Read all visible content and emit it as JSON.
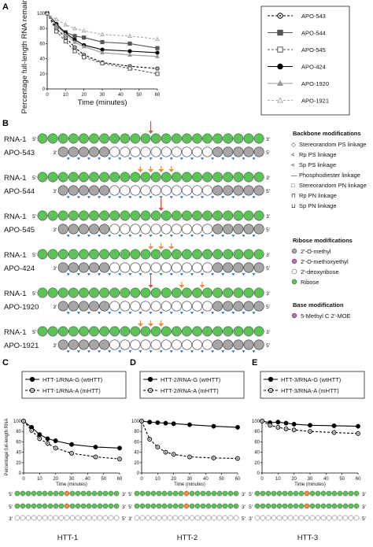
{
  "panels": {
    "A": "A",
    "B": "B",
    "C": "C",
    "D": "D",
    "E": "E"
  },
  "colors": {
    "green": "#5ec15a",
    "gray": "#a6a6a6",
    "white": "#ffffff",
    "red": "#e5483a",
    "blue": "#2f6bb0",
    "magenta": "#b96ab7",
    "orange": "#f08a3c"
  },
  "chart_data": [
    {
      "type": "line",
      "ylabel": "Percentage full-length RNA remaining",
      "xlabel": "Time (minutes)",
      "xlim": [
        0,
        60
      ],
      "ylim": [
        0,
        100
      ],
      "xticks": [
        0,
        10,
        20,
        30,
        40,
        50,
        60
      ],
      "yticks": [
        0,
        20,
        40,
        60,
        80,
        100
      ],
      "series": [
        {
          "name": "APO-543",
          "marker": "open-circle",
          "dash": "dash",
          "color": "#000000",
          "x": [
            0,
            5,
            10,
            15,
            20,
            30,
            45,
            60
          ],
          "y": [
            100,
            80,
            68,
            55,
            45,
            35,
            30,
            27
          ]
        },
        {
          "name": "APO-544",
          "marker": "filled-square",
          "dash": "solid",
          "color": "#555555",
          "x": [
            0,
            5,
            10,
            15,
            20,
            30,
            45,
            60
          ],
          "y": [
            100,
            84,
            75,
            70,
            68,
            62,
            60,
            54
          ]
        },
        {
          "name": "APO-545",
          "marker": "open-square",
          "dash": "dash",
          "color": "#555555",
          "x": [
            0,
            5,
            10,
            15,
            20,
            30,
            45,
            60
          ],
          "y": [
            100,
            76,
            63,
            50,
            42,
            34,
            27,
            20
          ]
        },
        {
          "name": "APO-424",
          "marker": "filled-circle",
          "dash": "solid",
          "color": "#000000",
          "x": [
            0,
            5,
            10,
            15,
            20,
            30,
            45,
            60
          ],
          "y": [
            100,
            86,
            74,
            65,
            58,
            52,
            50,
            48
          ]
        },
        {
          "name": "APO-1920",
          "marker": "filled-triangle",
          "dash": "solid",
          "color": "#999999",
          "x": [
            0,
            5,
            10,
            15,
            20,
            30,
            45,
            60
          ],
          "y": [
            100,
            84,
            72,
            62,
            56,
            48,
            45,
            43
          ]
        },
        {
          "name": "APO-1921",
          "marker": "open-triangle",
          "dash": "dash",
          "color": "#aaaaaa",
          "x": [
            0,
            5,
            10,
            15,
            20,
            30,
            45,
            60
          ],
          "y": [
            100,
            92,
            85,
            80,
            77,
            72,
            70,
            66
          ]
        }
      ]
    },
    {
      "type": "line",
      "title": "HTT-1",
      "ylabel": "Percentage full-length RNA",
      "xlabel": "Time (minutes)",
      "xlim": [
        0,
        60
      ],
      "ylim": [
        0,
        100
      ],
      "xticks": [
        0,
        10,
        20,
        30,
        40,
        50,
        60
      ],
      "yticks": [
        0,
        20,
        40,
        60,
        80,
        100
      ],
      "series": [
        {
          "name": "HTT-1/RNA-G (wtHTT)",
          "marker": "filled-circle",
          "dash": "solid",
          "x": [
            0,
            5,
            10,
            15,
            20,
            30,
            45,
            60
          ],
          "y": [
            100,
            88,
            74,
            66,
            62,
            55,
            50,
            48
          ]
        },
        {
          "name": "HTT-1/RNA-A (mHTT)",
          "marker": "open-circle",
          "dash": "dash",
          "x": [
            0,
            5,
            10,
            15,
            20,
            30,
            45,
            60
          ],
          "y": [
            100,
            82,
            66,
            57,
            48,
            38,
            31,
            27
          ]
        }
      ]
    },
    {
      "type": "line",
      "title": "HTT-2",
      "xlabel": "Time (minutes)",
      "xlim": [
        0,
        60
      ],
      "ylim": [
        0,
        100
      ],
      "xticks": [
        0,
        10,
        20,
        30,
        40,
        50,
        60
      ],
      "yticks": [
        0,
        20,
        40,
        60,
        80,
        100
      ],
      "series": [
        {
          "name": "HTT-2/RNA-G (wtHTT)",
          "marker": "filled-circle",
          "dash": "solid",
          "x": [
            0,
            5,
            10,
            15,
            20,
            30,
            45,
            60
          ],
          "y": [
            100,
            98,
            97,
            96,
            95,
            93,
            90,
            88
          ]
        },
        {
          "name": "HTT-2/RNA-A (mHTT)",
          "marker": "open-circle",
          "dash": "dash",
          "x": [
            0,
            5,
            10,
            15,
            20,
            30,
            45,
            60
          ],
          "y": [
            100,
            65,
            50,
            40,
            36,
            31,
            29,
            28
          ]
        }
      ]
    },
    {
      "type": "line",
      "title": "HTT-3",
      "xlabel": "Time (minutes)",
      "xlim": [
        0,
        60
      ],
      "ylim": [
        0,
        100
      ],
      "xticks": [
        0,
        10,
        20,
        30,
        40,
        50,
        60
      ],
      "yticks": [
        0,
        20,
        40,
        60,
        80,
        100
      ],
      "series": [
        {
          "name": "HTT-3/RNA-G (wtHTT)",
          "marker": "filled-circle",
          "dash": "solid",
          "x": [
            0,
            5,
            10,
            15,
            20,
            30,
            45,
            60
          ],
          "y": [
            100,
            97,
            98,
            96,
            94,
            92,
            91,
            90
          ]
        },
        {
          "name": "HTT-3/RNA-A (mHTT)",
          "marker": "open-circle",
          "dash": "dash",
          "x": [
            0,
            5,
            10,
            15,
            20,
            30,
            45,
            60
          ],
          "y": [
            100,
            92,
            88,
            85,
            83,
            80,
            78,
            76
          ]
        }
      ]
    }
  ],
  "panel_b": {
    "rna_label": "RNA-1",
    "five": "5'",
    "three": "3'",
    "rows": [
      {
        "name": "APO-543",
        "pattern": "GGGGGWWWWWWWWWWGGGGG",
        "arrows": [
          {
            "pos": 10,
            "big": true
          }
        ]
      },
      {
        "name": "APO-544",
        "pattern": "GGGGGWWWWWWWWWWGGGGG",
        "arrows": [
          {
            "pos": 9,
            "big": false
          },
          {
            "pos": 10,
            "big": false
          },
          {
            "pos": 11,
            "big": false
          },
          {
            "pos": 12,
            "big": false
          }
        ]
      },
      {
        "name": "APO-545",
        "pattern": "GGGGGWWWWWWWWWWGGGGG",
        "arrows": [
          {
            "pos": 11,
            "big": true
          }
        ]
      },
      {
        "name": "APO-424",
        "pattern": "GGGGGWWWWWWWWWWGGGGG",
        "arrows": [
          {
            "pos": 10,
            "big": false
          },
          {
            "pos": 11,
            "big": false
          },
          {
            "pos": 12,
            "big": false
          }
        ]
      },
      {
        "name": "APO-1920",
        "pattern": "GGGGGWWWWWWWWWWGGGGG",
        "arrows": [
          {
            "pos": 10,
            "big": true
          },
          {
            "pos": 13,
            "big": false
          },
          {
            "pos": 15,
            "big": false
          }
        ]
      },
      {
        "name": "APO-1921",
        "pattern": "GGGGGWWWWWWWWWWGGGGG",
        "arrows": [
          {
            "pos": 9,
            "big": false
          },
          {
            "pos": 10,
            "big": false
          },
          {
            "pos": 11,
            "big": false
          }
        ]
      }
    ],
    "legend": {
      "backbone_title": "Backbone modifications",
      "backbone": [
        "Stereorandom PS linkage",
        "Rp PS linkage",
        "Sp PS linkage",
        "Phosphodiester linkage",
        "Stereorandom PN linkage",
        "Rp PN linkage",
        "Sp PN linkage"
      ],
      "ribose_title": "Ribose modifications",
      "ribose": [
        "2'-O-methyl",
        "2'-O-methoxyethyl",
        "2'-deoxyribose",
        "Ribose"
      ],
      "base_title": "Base modification",
      "base": [
        "5-Methyl C 2'-MOE"
      ]
    }
  },
  "bottom_labels": [
    "HTT-1",
    "HTT-2",
    "HTT-3"
  ]
}
